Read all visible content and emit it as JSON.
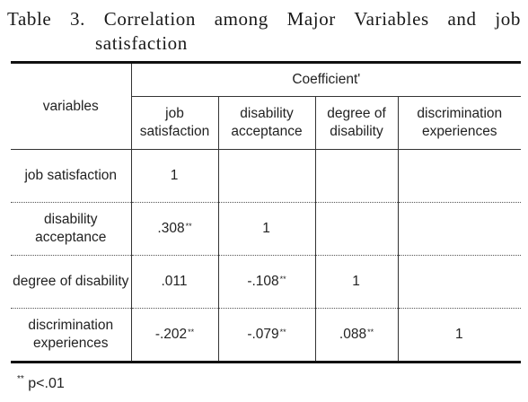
{
  "caption": {
    "line1": "Table 3. Correlation among Major Variables and job",
    "line2": "satisfaction"
  },
  "header": {
    "row_label": "variables",
    "group": "Coefficient'",
    "columns": [
      "job satisfaction",
      "disability acceptance",
      "degree of disability",
      "discrimination experiences"
    ]
  },
  "rows": [
    {
      "label": "job satisfaction",
      "cells": [
        {
          "v": "1",
          "sig": ""
        },
        {
          "v": "",
          "sig": ""
        },
        {
          "v": "",
          "sig": ""
        },
        {
          "v": "",
          "sig": ""
        }
      ]
    },
    {
      "label": "disability acceptance",
      "cells": [
        {
          "v": ".308",
          "sig": "**"
        },
        {
          "v": "1",
          "sig": ""
        },
        {
          "v": "",
          "sig": ""
        },
        {
          "v": "",
          "sig": ""
        }
      ]
    },
    {
      "label": "degree of disability",
      "cells": [
        {
          "v": ".011",
          "sig": ""
        },
        {
          "v": "-.108",
          "sig": "**"
        },
        {
          "v": "1",
          "sig": ""
        },
        {
          "v": "",
          "sig": ""
        }
      ]
    },
    {
      "label": "discrimination experiences",
      "cells": [
        {
          "v": "-.202",
          "sig": "**"
        },
        {
          "v": "-.079",
          "sig": "**"
        },
        {
          "v": ".088",
          "sig": "**"
        },
        {
          "v": "1",
          "sig": ""
        }
      ]
    }
  ],
  "footnote": {
    "mark": "**",
    "text": "p<.01"
  }
}
